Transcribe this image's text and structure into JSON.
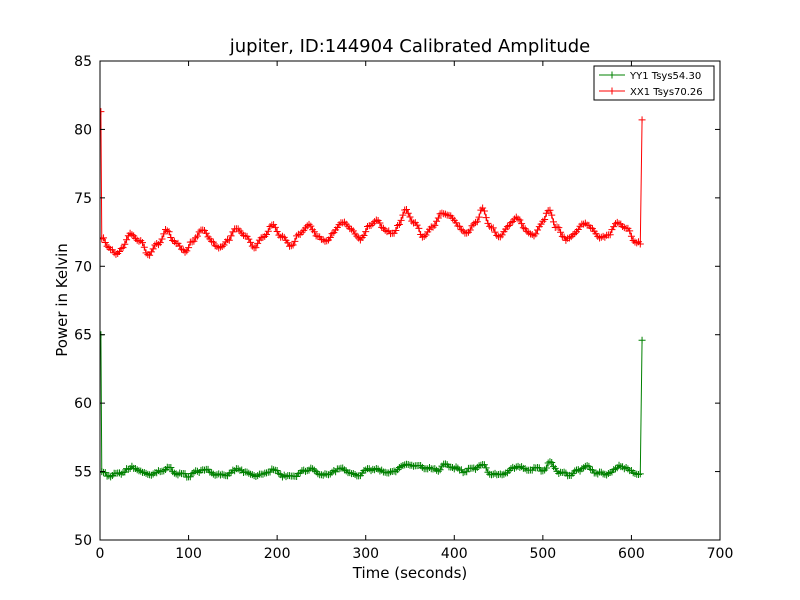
{
  "chart_data": {
    "type": "line",
    "title": "jupiter, ID:144904 Calibrated Amplitude",
    "xlabel": "Time (seconds)",
    "ylabel": "Power in Kelvin",
    "xlim": [
      0,
      700
    ],
    "ylim": [
      50,
      85
    ],
    "xticks": [
      0,
      100,
      200,
      300,
      400,
      500,
      600,
      700
    ],
    "yticks": [
      50,
      55,
      60,
      65,
      70,
      75,
      80,
      85
    ],
    "grid": false,
    "legend_position": "top-right",
    "marker": "+",
    "series": [
      {
        "name": "YY1 Tsys54.30",
        "color": "#008000",
        "x_start": 0,
        "x_end": 612,
        "x_step": 2,
        "start_spike": 65.0,
        "end_spike": 64.6,
        "baseline": 55.0,
        "points": [
          [
            4,
            54.9
          ],
          [
            10,
            54.7
          ],
          [
            20,
            54.8
          ],
          [
            30,
            55.1
          ],
          [
            38,
            55.3
          ],
          [
            50,
            54.9
          ],
          [
            60,
            54.8
          ],
          [
            70,
            55.1
          ],
          [
            76,
            55.3
          ],
          [
            90,
            54.8
          ],
          [
            100,
            54.7
          ],
          [
            110,
            55.0
          ],
          [
            116,
            55.2
          ],
          [
            130,
            54.8
          ],
          [
            140,
            54.7
          ],
          [
            150,
            55.0
          ],
          [
            156,
            55.2
          ],
          [
            170,
            54.8
          ],
          [
            180,
            54.7
          ],
          [
            190,
            55.0
          ],
          [
            196,
            55.1
          ],
          [
            210,
            54.6
          ],
          [
            220,
            54.7
          ],
          [
            230,
            55.0
          ],
          [
            236,
            55.2
          ],
          [
            250,
            54.8
          ],
          [
            256,
            54.7
          ],
          [
            265,
            55.1
          ],
          [
            275,
            55.2
          ],
          [
            285,
            54.8
          ],
          [
            292,
            54.7
          ],
          [
            300,
            55.1
          ],
          [
            310,
            55.2
          ],
          [
            318,
            55.0
          ],
          [
            330,
            54.9
          ],
          [
            340,
            55.4
          ],
          [
            350,
            55.5
          ],
          [
            360,
            55.4
          ],
          [
            370,
            55.2
          ],
          [
            380,
            55.1
          ],
          [
            390,
            55.5
          ],
          [
            400,
            55.3
          ],
          [
            410,
            55.0
          ],
          [
            420,
            55.2
          ],
          [
            432,
            55.5
          ],
          [
            440,
            54.9
          ],
          [
            450,
            54.7
          ],
          [
            460,
            55.0
          ],
          [
            472,
            55.4
          ],
          [
            482,
            55.1
          ],
          [
            492,
            55.2
          ],
          [
            500,
            55.1
          ],
          [
            508,
            55.6
          ],
          [
            520,
            54.9
          ],
          [
            530,
            54.8
          ],
          [
            540,
            55.1
          ],
          [
            548,
            55.4
          ],
          [
            560,
            54.9
          ],
          [
            570,
            54.8
          ],
          [
            580,
            55.1
          ],
          [
            588,
            55.4
          ],
          [
            600,
            55.0
          ],
          [
            611,
            54.8
          ]
        ]
      },
      {
        "name": "XX1 Tsys70.26",
        "color": "#ff0000",
        "x_start": 0,
        "x_end": 612,
        "x_step": 2,
        "start_spike": 81.3,
        "end_spike": 80.7,
        "baseline": 72.0,
        "points": [
          [
            4,
            72.0
          ],
          [
            10,
            71.4
          ],
          [
            18,
            70.8
          ],
          [
            25,
            71.4
          ],
          [
            35,
            72.4
          ],
          [
            45,
            71.8
          ],
          [
            55,
            70.9
          ],
          [
            65,
            71.6
          ],
          [
            75,
            72.6
          ],
          [
            85,
            71.8
          ],
          [
            95,
            71.1
          ],
          [
            105,
            71.8
          ],
          [
            115,
            72.7
          ],
          [
            125,
            71.9
          ],
          [
            135,
            71.3
          ],
          [
            145,
            72.0
          ],
          [
            155,
            72.8
          ],
          [
            165,
            72.1
          ],
          [
            175,
            71.4
          ],
          [
            185,
            72.2
          ],
          [
            195,
            73.0
          ],
          [
            205,
            72.2
          ],
          [
            215,
            71.5
          ],
          [
            225,
            72.3
          ],
          [
            235,
            73.0
          ],
          [
            245,
            72.3
          ],
          [
            255,
            71.8
          ],
          [
            265,
            72.6
          ],
          [
            275,
            73.3
          ],
          [
            285,
            72.6
          ],
          [
            295,
            72.0
          ],
          [
            305,
            73.0
          ],
          [
            312,
            73.3
          ],
          [
            320,
            72.8
          ],
          [
            330,
            72.3
          ],
          [
            338,
            73.1
          ],
          [
            345,
            74.1
          ],
          [
            355,
            73.2
          ],
          [
            365,
            72.2
          ],
          [
            375,
            72.8
          ],
          [
            385,
            73.8
          ],
          [
            395,
            73.8
          ],
          [
            405,
            72.9
          ],
          [
            415,
            72.4
          ],
          [
            425,
            73.3
          ],
          [
            432,
            74.2
          ],
          [
            440,
            73.0
          ],
          [
            450,
            72.1
          ],
          [
            460,
            72.8
          ],
          [
            470,
            73.6
          ],
          [
            480,
            72.7
          ],
          [
            490,
            72.2
          ],
          [
            500,
            73.3
          ],
          [
            507,
            74.1
          ],
          [
            515,
            72.9
          ],
          [
            525,
            72.0
          ],
          [
            535,
            72.3
          ],
          [
            545,
            73.2
          ],
          [
            555,
            72.8
          ],
          [
            565,
            72.0
          ],
          [
            575,
            72.4
          ],
          [
            585,
            73.2
          ],
          [
            595,
            72.7
          ],
          [
            605,
            71.8
          ],
          [
            611,
            71.6
          ]
        ]
      }
    ]
  }
}
